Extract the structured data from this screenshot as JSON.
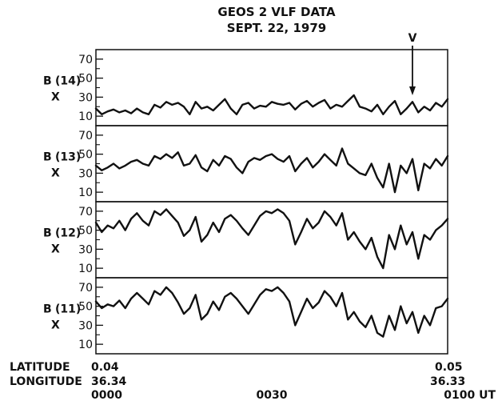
{
  "chart_data": {
    "type": "line",
    "title": "GEOS 2 VLF DATA",
    "subtitle": "SEPT. 22, 1979",
    "y_ticks": [
      10,
      30,
      50,
      70
    ],
    "y_minor_ticks": [
      20,
      40,
      60
    ],
    "ylim": [
      0,
      80
    ],
    "xlim": [
      0,
      60
    ],
    "x_tick_labels": [
      {
        "x": 0,
        "text": "0000"
      },
      {
        "x": 30,
        "text": "0030"
      },
      {
        "x": 60,
        "text": "0100 UT"
      }
    ],
    "latitude": {
      "label": "LATITUDE",
      "start": "0.04",
      "end": "0.05"
    },
    "longitude": {
      "label": "LONGITUDE",
      "start": "36.34",
      "end": "36.33"
    },
    "annotation": {
      "text": "V",
      "x": 54
    },
    "series": [
      {
        "name": "B(14) X",
        "label_main": "B",
        "label_sub": "(14)",
        "label_x": "X",
        "x": [
          0,
          1,
          2,
          3,
          4,
          5,
          6,
          7,
          8,
          9,
          10,
          11,
          12,
          13,
          14,
          15,
          16,
          17,
          18,
          19,
          20,
          21,
          22,
          23,
          24,
          25,
          26,
          27,
          28,
          29,
          30,
          31,
          32,
          33,
          34,
          35,
          36,
          37,
          38,
          39,
          40,
          41,
          42,
          43,
          44,
          45,
          46,
          47,
          48,
          49,
          50,
          51,
          52,
          53,
          54,
          55,
          56,
          57,
          58,
          59,
          60
        ],
        "values": [
          18,
          12,
          15,
          17,
          14,
          16,
          13,
          18,
          14,
          12,
          22,
          19,
          25,
          22,
          24,
          20,
          12,
          25,
          18,
          20,
          16,
          22,
          28,
          18,
          12,
          22,
          24,
          18,
          21,
          20,
          25,
          23,
          22,
          24,
          17,
          23,
          26,
          20,
          24,
          27,
          18,
          22,
          20,
          26,
          32,
          20,
          18,
          15,
          22,
          12,
          20,
          26,
          12,
          18,
          25,
          14,
          20,
          16,
          24,
          20,
          28
        ]
      },
      {
        "name": "B(13) X",
        "label_main": "B",
        "label_sub": "(13)",
        "label_x": "X",
        "x": [
          0,
          1,
          2,
          3,
          4,
          5,
          6,
          7,
          8,
          9,
          10,
          11,
          12,
          13,
          14,
          15,
          16,
          17,
          18,
          19,
          20,
          21,
          22,
          23,
          24,
          25,
          26,
          27,
          28,
          29,
          30,
          31,
          32,
          33,
          34,
          35,
          36,
          37,
          38,
          39,
          40,
          41,
          42,
          43,
          44,
          45,
          46,
          47,
          48,
          49,
          50,
          51,
          52,
          53,
          54,
          55,
          56,
          57,
          58,
          59,
          60
        ],
        "values": [
          38,
          33,
          36,
          40,
          35,
          38,
          42,
          44,
          40,
          38,
          48,
          45,
          50,
          46,
          52,
          38,
          40,
          49,
          36,
          32,
          44,
          38,
          48,
          45,
          36,
          30,
          42,
          46,
          44,
          48,
          50,
          45,
          42,
          48,
          32,
          40,
          46,
          36,
          42,
          50,
          44,
          38,
          56,
          40,
          35,
          30,
          28,
          40,
          25,
          15,
          40,
          10,
          38,
          30,
          45,
          12,
          40,
          35,
          45,
          38,
          48
        ]
      },
      {
        "name": "B(12) X",
        "label_main": "B",
        "label_sub": "(12)",
        "label_x": "X",
        "x": [
          0,
          1,
          2,
          3,
          4,
          5,
          6,
          7,
          8,
          9,
          10,
          11,
          12,
          13,
          14,
          15,
          16,
          17,
          18,
          19,
          20,
          21,
          22,
          23,
          24,
          25,
          26,
          27,
          28,
          29,
          30,
          31,
          32,
          33,
          34,
          35,
          36,
          37,
          38,
          39,
          40,
          41,
          42,
          43,
          44,
          45,
          46,
          47,
          48,
          49,
          50,
          51,
          52,
          53,
          54,
          55,
          56,
          57,
          58,
          59,
          60
        ],
        "values": [
          58,
          48,
          55,
          52,
          60,
          50,
          62,
          68,
          60,
          55,
          70,
          66,
          72,
          65,
          58,
          44,
          50,
          64,
          38,
          45,
          58,
          48,
          62,
          66,
          60,
          52,
          45,
          55,
          65,
          70,
          68,
          72,
          68,
          60,
          35,
          48,
          62,
          52,
          58,
          70,
          64,
          55,
          68,
          40,
          48,
          38,
          30,
          42,
          22,
          10,
          45,
          30,
          55,
          35,
          48,
          20,
          45,
          40,
          50,
          55,
          62
        ]
      },
      {
        "name": "B(11) X",
        "label_main": "B",
        "label_sub": "(11)",
        "label_x": "X",
        "x": [
          0,
          1,
          2,
          3,
          4,
          5,
          6,
          7,
          8,
          9,
          10,
          11,
          12,
          13,
          14,
          15,
          16,
          17,
          18,
          19,
          20,
          21,
          22,
          23,
          24,
          25,
          26,
          27,
          28,
          29,
          30,
          31,
          32,
          33,
          34,
          35,
          36,
          37,
          38,
          39,
          40,
          41,
          42,
          43,
          44,
          45,
          46,
          47,
          48,
          49,
          50,
          51,
          52,
          53,
          54,
          55,
          56,
          57,
          58,
          59,
          60
        ],
        "values": [
          55,
          48,
          52,
          50,
          56,
          48,
          58,
          64,
          58,
          52,
          66,
          62,
          70,
          64,
          54,
          42,
          48,
          62,
          36,
          42,
          55,
          46,
          60,
          64,
          58,
          50,
          42,
          52,
          62,
          68,
          66,
          70,
          64,
          55,
          30,
          44,
          58,
          48,
          54,
          66,
          60,
          50,
          64,
          36,
          44,
          34,
          28,
          40,
          22,
          18,
          40,
          25,
          50,
          32,
          44,
          22,
          40,
          30,
          48,
          50,
          58
        ]
      }
    ]
  }
}
